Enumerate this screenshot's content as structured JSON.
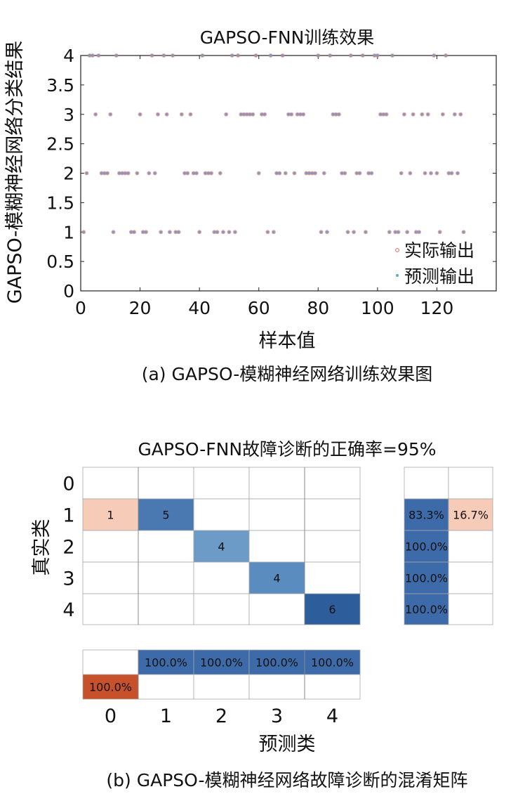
{
  "chart_data": [
    {
      "type": "scatter",
      "title": "GAPSO-FNN训练效果",
      "xlabel": "样本值",
      "ylabel": "GAPSO-模糊神经网络分类结果",
      "caption": "(a) GAPSO-模糊神经网络训练效果图",
      "xlim": [
        0,
        140
      ],
      "ylim": [
        0,
        4
      ],
      "xticks": [
        0,
        20,
        40,
        60,
        80,
        100,
        120
      ],
      "yticks": [
        0,
        0.5,
        1,
        1.5,
        2,
        2.5,
        3,
        3.5,
        4
      ],
      "ytick_labels": [
        "0",
        "0.5",
        "1",
        "1.5",
        "2",
        "2.5",
        "3",
        "3.5",
        "4"
      ],
      "legend": {
        "position": "bottom-right",
        "entries": [
          "实际输出",
          "预测输出"
        ]
      },
      "colors": {
        "actual": "#e8685a",
        "predicted": "#6aa7b8",
        "dot": "#8b95b8"
      },
      "series": [
        {
          "name": "实际输出",
          "x": [
            1,
            2,
            3,
            4,
            5,
            6,
            7,
            8,
            9,
            10,
            11,
            12,
            13,
            14,
            15,
            16,
            17,
            18,
            19,
            20,
            21,
            22,
            23,
            24,
            25,
            26,
            27,
            28,
            29,
            30,
            31,
            32,
            33,
            34,
            35,
            36,
            37,
            38,
            39,
            40,
            41,
            42,
            43,
            44,
            45,
            46,
            47,
            48,
            49,
            50,
            51,
            52,
            53,
            54,
            55,
            56,
            57,
            58,
            59,
            60,
            61,
            62,
            63,
            64,
            65,
            66,
            67,
            68,
            69,
            70,
            71,
            72,
            73,
            74,
            75,
            76,
            77,
            78,
            79,
            80,
            81,
            82,
            83,
            84,
            85,
            86,
            87,
            88,
            89,
            90,
            91,
            92,
            93,
            94,
            95,
            96,
            97,
            98,
            99,
            100,
            101,
            102,
            103,
            104,
            105,
            106,
            107,
            108,
            109,
            110,
            111,
            112,
            113,
            114,
            115,
            116,
            117,
            118,
            119,
            120,
            121,
            122,
            123,
            124,
            125,
            126,
            127,
            128,
            129
          ],
          "y": [
            1,
            2,
            4,
            4,
            3,
            4,
            2,
            2,
            2,
            3,
            1,
            4,
            2,
            2,
            2,
            2,
            1,
            1,
            2,
            3,
            1,
            1,
            2,
            4,
            2,
            3,
            1,
            4,
            3,
            1,
            4,
            1,
            1,
            3,
            2,
            2,
            3,
            2,
            2,
            1,
            4,
            2,
            2,
            2,
            1,
            1,
            2,
            1,
            3,
            1,
            4,
            1,
            4,
            3,
            3,
            3,
            3,
            3,
            4,
            2,
            3,
            3,
            1,
            4,
            1,
            2,
            2,
            4,
            2,
            3,
            3,
            2,
            3,
            3,
            3,
            2,
            2,
            2,
            2,
            4,
            1,
            2,
            1,
            4,
            3,
            3,
            3,
            2,
            2,
            1,
            4,
            1,
            2,
            2,
            4,
            1,
            2,
            2,
            4,
            4,
            3,
            3,
            3,
            1,
            4,
            1,
            1,
            2,
            3,
            1,
            2,
            3,
            1,
            1,
            3,
            2,
            3,
            2,
            4,
            2,
            1,
            3,
            4,
            2,
            2,
            3,
            2,
            3,
            1
          ]
        },
        {
          "name": "预测输出",
          "x": [
            1,
            2,
            3,
            4,
            5,
            6,
            7,
            8,
            9,
            10,
            11,
            12,
            13,
            14,
            15,
            16,
            17,
            18,
            19,
            20,
            21,
            22,
            23,
            24,
            25,
            26,
            27,
            28,
            29,
            30,
            31,
            32,
            33,
            34,
            35,
            36,
            37,
            38,
            39,
            40,
            41,
            42,
            43,
            44,
            45,
            46,
            47,
            48,
            49,
            50,
            51,
            52,
            53,
            54,
            55,
            56,
            57,
            58,
            59,
            60,
            61,
            62,
            63,
            64,
            65,
            66,
            67,
            68,
            69,
            70,
            71,
            72,
            73,
            74,
            75,
            76,
            77,
            78,
            79,
            80,
            81,
            82,
            83,
            84,
            85,
            86,
            87,
            88,
            89,
            90,
            91,
            92,
            93,
            94,
            95,
            96,
            97,
            98,
            99,
            100,
            101,
            102,
            103,
            104,
            105,
            106,
            107,
            108,
            109,
            110,
            111,
            112,
            113,
            114,
            115,
            116,
            117,
            118,
            119,
            120,
            121,
            122,
            123,
            124,
            125,
            126,
            127,
            128,
            129
          ],
          "y": [
            1,
            2,
            4,
            4,
            3,
            4,
            2,
            2,
            2,
            3,
            1,
            4,
            2,
            2,
            2,
            2,
            1,
            1,
            2,
            3,
            1,
            1,
            2,
            4,
            2,
            3,
            1,
            4,
            3,
            1,
            4,
            1,
            1,
            3,
            2,
            2,
            3,
            2,
            2,
            1,
            4,
            2,
            2,
            2,
            1,
            1,
            2,
            1,
            3,
            1,
            4,
            1,
            4,
            3,
            3,
            3,
            3,
            3,
            4,
            2,
            3,
            3,
            1,
            4,
            1,
            2,
            2,
            4,
            2,
            3,
            3,
            2,
            3,
            3,
            3,
            2,
            2,
            2,
            2,
            4,
            1,
            2,
            1,
            4,
            3,
            3,
            3,
            2,
            2,
            1,
            4,
            1,
            2,
            2,
            4,
            1,
            2,
            2,
            4,
            4,
            3,
            3,
            3,
            1,
            4,
            1,
            1,
            2,
            3,
            1,
            2,
            3,
            1,
            1,
            3,
            2,
            3,
            2,
            4,
            2,
            1,
            3,
            4,
            2,
            2,
            3,
            2,
            3,
            1
          ]
        }
      ]
    },
    {
      "type": "heatmap",
      "title": "GAPSO-FNN故障诊断的正确率=95%",
      "xlabel": "预测类",
      "ylabel": "真实类",
      "caption": "(b) GAPSO-模糊神经网络故障诊断的混淆矩阵",
      "classes": [
        "0",
        "1",
        "2",
        "3",
        "4"
      ],
      "matrix": [
        [
          0,
          0,
          0,
          0,
          0
        ],
        [
          1,
          5,
          0,
          0,
          0
        ],
        [
          0,
          0,
          4,
          0,
          0
        ],
        [
          0,
          0,
          0,
          4,
          0
        ],
        [
          0,
          0,
          0,
          0,
          6
        ]
      ],
      "matrix_labels": [
        [
          "",
          "",
          "",
          "",
          ""
        ],
        [
          "1",
          "5",
          "",
          "",
          ""
        ],
        [
          "",
          "",
          "4",
          "",
          ""
        ],
        [
          "",
          "",
          "",
          "4",
          ""
        ],
        [
          "",
          "",
          "",
          "",
          "6"
        ]
      ],
      "row_summary": [
        [
          "",
          ""
        ],
        [
          "83.3%",
          "16.7%"
        ],
        [
          "100.0%",
          ""
        ],
        [
          "100.0%",
          ""
        ],
        [
          "100.0%",
          ""
        ]
      ],
      "row_summary_values": [
        [
          null,
          null
        ],
        [
          83.3,
          16.7
        ],
        [
          100,
          null
        ],
        [
          100,
          null
        ],
        [
          100,
          null
        ]
      ],
      "col_summary": [
        [
          "",
          "100.0%",
          "100.0%",
          "100.0%",
          "100.0%"
        ],
        [
          "100.0%",
          "",
          "",
          "",
          ""
        ]
      ],
      "col_summary_values": [
        [
          null,
          100,
          100,
          100,
          100
        ],
        [
          100,
          null,
          null,
          null,
          null
        ]
      ],
      "colors": {
        "cell_5": "#4a79b1",
        "cell_4_col2": "#6c9bc8",
        "cell_4_col3": "#5b8cc0",
        "cell_6": "#2e5d9c",
        "cell_1": "#f6cbb8",
        "summary_blue": "#3d6aa8",
        "summary_pink": "#f6cbb8",
        "summary_orange": "#c7512a",
        "grid": "#a9a9a9"
      }
    }
  ]
}
